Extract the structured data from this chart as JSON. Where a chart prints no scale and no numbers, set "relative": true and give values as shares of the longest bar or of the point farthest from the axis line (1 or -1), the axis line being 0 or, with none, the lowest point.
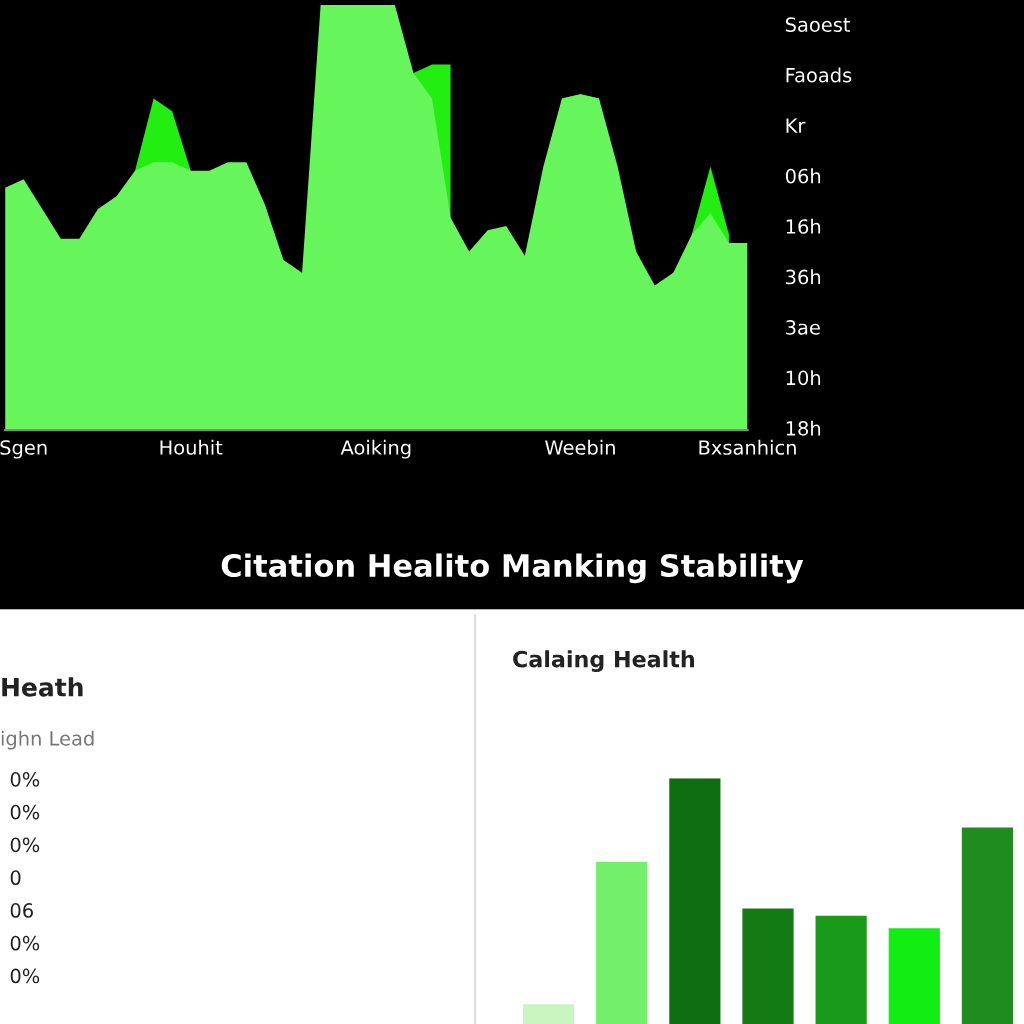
{
  "chart_data": [
    {
      "type": "area",
      "relative": true,
      "categories": [
        null,
        "Sgen",
        null,
        null,
        null,
        null,
        null,
        null,
        null,
        null,
        "Houhit",
        null,
        null,
        null,
        null,
        null,
        null,
        null,
        null,
        null,
        "Aoiking",
        null,
        null,
        null,
        null,
        null,
        null,
        null,
        null,
        null,
        null,
        "Weebin",
        null,
        null,
        null,
        null,
        null,
        null,
        null,
        null,
        "Bxsanhicn"
      ],
      "series": [
        {
          "color": "#22ee11",
          "values": [
            null,
            null,
            null,
            null,
            null,
            null,
            null,
            0.61,
            0.78,
            0.75,
            0.61,
            null,
            null,
            null,
            null,
            null,
            null,
            null,
            null,
            null,
            null,
            null,
            0.84,
            0.86,
            0.86,
            null,
            null,
            null,
            null,
            null,
            0.78,
            0.79,
            0.78,
            null,
            null,
            null,
            null,
            0.46,
            0.62,
            0.46,
            null
          ]
        },
        {
          "color": "#66f55a",
          "values": [
            0.57,
            0.59,
            0.52,
            0.45,
            0.45,
            0.52,
            0.55,
            0.61,
            0.63,
            0.63,
            0.61,
            0.61,
            0.63,
            0.63,
            0.53,
            0.4,
            0.37,
            1.0,
            1.0,
            1.0,
            1.0,
            1.0,
            0.84,
            0.78,
            0.5,
            0.42,
            0.47,
            0.48,
            0.41,
            0.62,
            0.78,
            0.79,
            0.78,
            0.62,
            0.42,
            0.34,
            0.37,
            0.46,
            0.51,
            0.44,
            0.44
          ]
        }
      ],
      "annotations": [
        "Saoest",
        "Faoads",
        "Kr",
        "06h",
        "16h",
        "36h",
        "3ae",
        "10h",
        "18h"
      ]
    },
    {
      "type": "other",
      "title": "Citation Healito Manking Stability"
    },
    {
      "type": "other",
      "title": "Heath",
      "subtitle": "ighn Lead",
      "annotations": [
        "0%",
        "0%",
        "0%",
        "0",
        "06",
        "0%",
        "0%"
      ]
    },
    {
      "type": "bar",
      "relative": true,
      "title": "Calaing Health",
      "categories": [
        null,
        null,
        null,
        null,
        null,
        null,
        null
      ],
      "values": [
        0.08,
        0.66,
        1.0,
        0.47,
        0.44,
        0.39,
        0.8
      ],
      "colors": [
        "#c8f5c0",
        "#74ef6c",
        "#0f6e12",
        "#137a14",
        "#1a9a1a",
        "#11ee11",
        "#1e8c1e"
      ]
    }
  ]
}
